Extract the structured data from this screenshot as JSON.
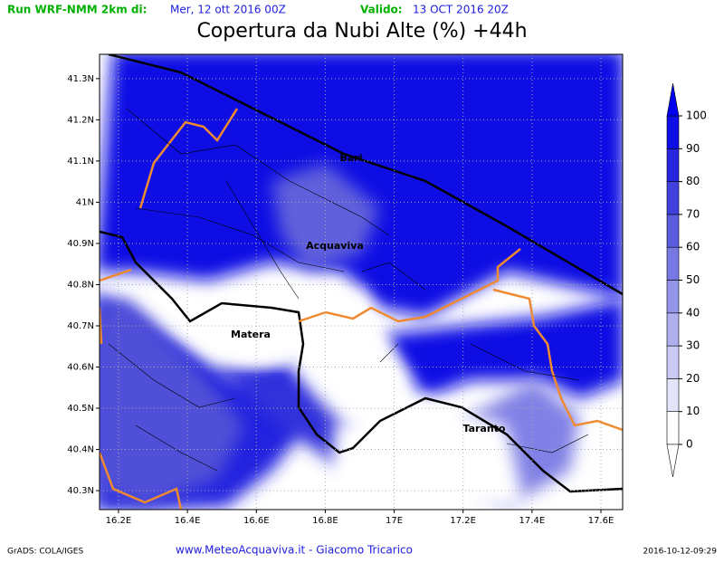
{
  "header": {
    "run_label": "Run WRF-NMM 2km di:",
    "run_date": "Mer, 12 ott 2016 00Z",
    "valid_label": "Valido:",
    "valid_date": "13 OCT 2016 20Z"
  },
  "title": "Copertura da Nubi Alte (%) +44h",
  "map": {
    "lonlim": [
      16.145,
      17.663
    ],
    "latlim": [
      40.254,
      41.359
    ],
    "lon_ticks": [
      {
        "value": 16.2,
        "label": "16.2E"
      },
      {
        "value": 16.4,
        "label": "16.4E"
      },
      {
        "value": 16.6,
        "label": "16.6E"
      },
      {
        "value": 16.8,
        "label": "16.8E"
      },
      {
        "value": 17,
        "label": "17E"
      },
      {
        "value": 17.2,
        "label": "17.2E"
      },
      {
        "value": 17.4,
        "label": "17.4E"
      },
      {
        "value": 17.6,
        "label": "17.6E"
      }
    ],
    "lat_ticks": [
      {
        "value": 40.3,
        "label": "40.3N"
      },
      {
        "value": 40.4,
        "label": "40.4N"
      },
      {
        "value": 40.5,
        "label": "40.5N"
      },
      {
        "value": 40.6,
        "label": "40.6N"
      },
      {
        "value": 40.7,
        "label": "40.7N"
      },
      {
        "value": 40.8,
        "label": "40.8N"
      },
      {
        "value": 40.9,
        "label": "40.9N"
      },
      {
        "value": 41,
        "label": "41N"
      },
      {
        "value": 41.1,
        "label": "41.1N"
      },
      {
        "value": 41.2,
        "label": "41.2N"
      },
      {
        "value": 41.3,
        "label": "41.3N"
      }
    ],
    "places": [
      "Bari",
      "Acquaviva",
      "Matera",
      "Taranto"
    ]
  },
  "colorbar": {
    "ticks": [
      0,
      10,
      20,
      30,
      40,
      50,
      60,
      70,
      80,
      90,
      100
    ],
    "colors": [
      "#ffffff",
      "#e4e4fa",
      "#cacaf5",
      "#afafef",
      "#9494ea",
      "#7878e4",
      "#5c5cdf",
      "#4040dc",
      "#2626de",
      "#0e0ee6"
    ],
    "over_color": "#0000ee"
  },
  "footer": {
    "left": "GrADS: COLA/IGES",
    "center": "www.MeteoAcquaviva.it - Giacomo Tricarico",
    "right": "2016-10-12-09:29"
  }
}
